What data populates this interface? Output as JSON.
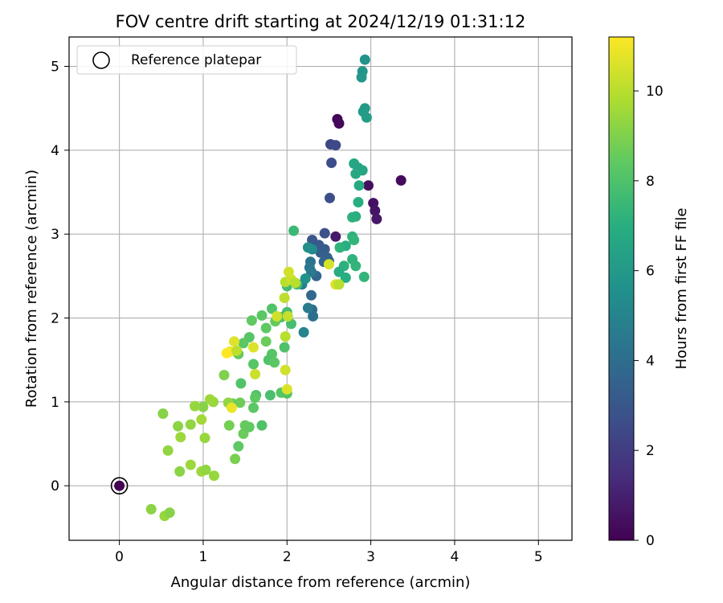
{
  "chart_data": {
    "type": "scatter",
    "title": "FOV centre drift starting at 2024/12/19 01:31:12",
    "xlabel": "Angular distance from reference (arcmin)",
    "ylabel": "Rotation from reference (arcmin)",
    "xlim": [
      -0.6,
      5.4
    ],
    "ylim": [
      -0.65,
      5.35
    ],
    "xticks": [
      0,
      1,
      2,
      3,
      4,
      5
    ],
    "yticks": [
      0,
      1,
      2,
      3,
      4,
      5
    ],
    "grid": true,
    "legend": {
      "placement": "top-left",
      "entries": [
        {
          "label": "Reference platepar",
          "marker": "open-circle"
        }
      ]
    },
    "colorbar": {
      "label": "Hours from first FF file",
      "range": [
        0,
        11.2
      ],
      "ticks": [
        0,
        2,
        4,
        6,
        8,
        10
      ],
      "colormap": "viridis"
    },
    "reference_point": {
      "x": 0,
      "y": 0,
      "c": 0
    },
    "points": [
      {
        "x": 0,
        "y": 0,
        "c": 0
      },
      {
        "x": 2.6,
        "y": 4.37,
        "c": 0.1
      },
      {
        "x": 2.62,
        "y": 4.32,
        "c": 0.2
      },
      {
        "x": 3.36,
        "y": 3.64,
        "c": 0.3
      },
      {
        "x": 2.97,
        "y": 3.58,
        "c": 0.4
      },
      {
        "x": 3.03,
        "y": 3.37,
        "c": 0.5
      },
      {
        "x": 3.05,
        "y": 3.28,
        "c": 0.6
      },
      {
        "x": 3.07,
        "y": 3.18,
        "c": 0.7
      },
      {
        "x": 2.58,
        "y": 2.97,
        "c": 0.8
      },
      {
        "x": 2.52,
        "y": 4.07,
        "c": 2.4
      },
      {
        "x": 2.58,
        "y": 4.06,
        "c": 2.5
      },
      {
        "x": 2.53,
        "y": 3.85,
        "c": 2.6
      },
      {
        "x": 2.51,
        "y": 3.43,
        "c": 2.7
      },
      {
        "x": 2.45,
        "y": 3.01,
        "c": 2.8
      },
      {
        "x": 2.3,
        "y": 2.93,
        "c": 3.0
      },
      {
        "x": 2.38,
        "y": 2.87,
        "c": 3.1
      },
      {
        "x": 2.45,
        "y": 2.82,
        "c": 3.2
      },
      {
        "x": 2.4,
        "y": 2.78,
        "c": 3.3
      },
      {
        "x": 2.48,
        "y": 2.72,
        "c": 3.4
      },
      {
        "x": 2.5,
        "y": 2.68,
        "c": 3.5
      },
      {
        "x": 2.44,
        "y": 2.67,
        "c": 3.6
      },
      {
        "x": 2.35,
        "y": 2.5,
        "c": 3.7
      },
      {
        "x": 2.29,
        "y": 2.27,
        "c": 3.8
      },
      {
        "x": 2.3,
        "y": 2.1,
        "c": 4.0
      },
      {
        "x": 2.31,
        "y": 2.02,
        "c": 4.1
      },
      {
        "x": 2.28,
        "y": 2.67,
        "c": 4.2
      },
      {
        "x": 2.27,
        "y": 2.6,
        "c": 4.4
      },
      {
        "x": 2.29,
        "y": 2.55,
        "c": 4.5
      },
      {
        "x": 2.25,
        "y": 2.12,
        "c": 4.6
      },
      {
        "x": 2.18,
        "y": 2.4,
        "c": 4.8
      },
      {
        "x": 2.2,
        "y": 1.83,
        "c": 5.0
      },
      {
        "x": 2.3,
        "y": 2.82,
        "c": 5.2
      },
      {
        "x": 2.25,
        "y": 2.84,
        "c": 5.5
      },
      {
        "x": 2.22,
        "y": 2.47,
        "c": 5.6
      },
      {
        "x": 2.93,
        "y": 5.08,
        "c": 5.7
      },
      {
        "x": 2.9,
        "y": 4.94,
        "c": 5.8
      },
      {
        "x": 2.89,
        "y": 4.87,
        "c": 5.9
      },
      {
        "x": 2.93,
        "y": 4.5,
        "c": 6.0
      },
      {
        "x": 2.91,
        "y": 4.46,
        "c": 6.1
      },
      {
        "x": 2.95,
        "y": 4.39,
        "c": 6.2
      },
      {
        "x": 2.85,
        "y": 3.79,
        "c": 6.4
      },
      {
        "x": 2.9,
        "y": 3.76,
        "c": 6.5
      },
      {
        "x": 2.8,
        "y": 3.84,
        "c": 6.6
      },
      {
        "x": 2.82,
        "y": 3.72,
        "c": 6.7
      },
      {
        "x": 2.86,
        "y": 3.58,
        "c": 6.8
      },
      {
        "x": 2.85,
        "y": 3.38,
        "c": 6.9
      },
      {
        "x": 2.82,
        "y": 3.21,
        "c": 7.0
      },
      {
        "x": 2.78,
        "y": 3.2,
        "c": 7.1
      },
      {
        "x": 2.78,
        "y": 2.97,
        "c": 7.2
      },
      {
        "x": 2.8,
        "y": 2.93,
        "c": 7.3
      },
      {
        "x": 2.7,
        "y": 2.86,
        "c": 7.0
      },
      {
        "x": 2.63,
        "y": 2.84,
        "c": 7.2
      },
      {
        "x": 2.68,
        "y": 2.62,
        "c": 7.1
      },
      {
        "x": 2.62,
        "y": 2.55,
        "c": 6.9
      },
      {
        "x": 2.7,
        "y": 2.48,
        "c": 7.0
      },
      {
        "x": 2.78,
        "y": 2.7,
        "c": 7.2
      },
      {
        "x": 2.82,
        "y": 2.62,
        "c": 7.3
      },
      {
        "x": 2.92,
        "y": 2.49,
        "c": 7.3
      },
      {
        "x": 2.08,
        "y": 3.04,
        "c": 7.5
      },
      {
        "x": 2.12,
        "y": 2.4,
        "c": 7.6
      },
      {
        "x": 2.0,
        "y": 2.38,
        "c": 7.7
      },
      {
        "x": 2.0,
        "y": 2.07,
        "c": 7.8
      },
      {
        "x": 2.05,
        "y": 1.93,
        "c": 7.8
      },
      {
        "x": 1.93,
        "y": 2.01,
        "c": 8.0
      },
      {
        "x": 1.82,
        "y": 2.11,
        "c": 8.1
      },
      {
        "x": 1.7,
        "y": 2.03,
        "c": 8.3
      },
      {
        "x": 1.75,
        "y": 1.88,
        "c": 8.4
      },
      {
        "x": 1.86,
        "y": 1.96,
        "c": 8.5
      },
      {
        "x": 1.75,
        "y": 1.72,
        "c": 8.6
      },
      {
        "x": 1.82,
        "y": 1.57,
        "c": 8.2
      },
      {
        "x": 1.78,
        "y": 1.5,
        "c": 8.1
      },
      {
        "x": 1.85,
        "y": 1.47,
        "c": 8.3
      },
      {
        "x": 1.97,
        "y": 1.65,
        "c": 8.0
      },
      {
        "x": 1.58,
        "y": 1.97,
        "c": 8.4
      },
      {
        "x": 1.55,
        "y": 1.77,
        "c": 8.2
      },
      {
        "x": 1.48,
        "y": 1.7,
        "c": 8.3
      },
      {
        "x": 1.42,
        "y": 1.57,
        "c": 8.5
      },
      {
        "x": 1.6,
        "y": 1.45,
        "c": 8.2
      },
      {
        "x": 1.45,
        "y": 1.22,
        "c": 8.1
      },
      {
        "x": 1.63,
        "y": 1.08,
        "c": 8.0
      },
      {
        "x": 1.62,
        "y": 1.05,
        "c": 8.4
      },
      {
        "x": 1.6,
        "y": 0.93,
        "c": 8.3
      },
      {
        "x": 1.8,
        "y": 1.08,
        "c": 7.9
      },
      {
        "x": 1.93,
        "y": 1.11,
        "c": 8.2
      },
      {
        "x": 2.0,
        "y": 1.1,
        "c": 8.1
      },
      {
        "x": 1.7,
        "y": 0.72,
        "c": 8.0
      },
      {
        "x": 1.55,
        "y": 0.7,
        "c": 8.4
      },
      {
        "x": 1.48,
        "y": 0.62,
        "c": 8.6
      },
      {
        "x": 1.5,
        "y": 0.72,
        "c": 8.5
      },
      {
        "x": 1.44,
        "y": 0.99,
        "c": 8.7
      },
      {
        "x": 1.35,
        "y": 0.98,
        "c": 8.6
      },
      {
        "x": 1.31,
        "y": 0.72,
        "c": 8.8
      },
      {
        "x": 1.42,
        "y": 0.47,
        "c": 8.4
      },
      {
        "x": 1.38,
        "y": 0.32,
        "c": 8.9
      },
      {
        "x": 1.25,
        "y": 1.32,
        "c": 9.0
      },
      {
        "x": 1.3,
        "y": 0.99,
        "c": 9.3
      },
      {
        "x": 1.12,
        "y": 1.0,
        "c": 9.4
      },
      {
        "x": 1.08,
        "y": 1.03,
        "c": 9.5
      },
      {
        "x": 1.0,
        "y": 0.94,
        "c": 9.1
      },
      {
        "x": 0.9,
        "y": 0.95,
        "c": 9.4
      },
      {
        "x": 0.98,
        "y": 0.79,
        "c": 9.6
      },
      {
        "x": 0.85,
        "y": 0.73,
        "c": 9.3
      },
      {
        "x": 0.7,
        "y": 0.71,
        "c": 9.2
      },
      {
        "x": 0.73,
        "y": 0.58,
        "c": 9.5
      },
      {
        "x": 1.02,
        "y": 0.57,
        "c": 9.4
      },
      {
        "x": 0.52,
        "y": 0.86,
        "c": 9.1
      },
      {
        "x": 0.58,
        "y": 0.42,
        "c": 9.3
      },
      {
        "x": 0.85,
        "y": 0.25,
        "c": 9.5
      },
      {
        "x": 0.72,
        "y": 0.17,
        "c": 9.2
      },
      {
        "x": 0.98,
        "y": 0.17,
        "c": 9.5
      },
      {
        "x": 1.03,
        "y": 0.19,
        "c": 9.3
      },
      {
        "x": 1.13,
        "y": 0.12,
        "c": 9.4
      },
      {
        "x": 0.38,
        "y": -0.28,
        "c": 9.2
      },
      {
        "x": 0.54,
        "y": -0.36,
        "c": 9.4
      },
      {
        "x": 0.6,
        "y": -0.32,
        "c": 9.1
      },
      {
        "x": 1.6,
        "y": 1.65,
        "c": 10.6
      },
      {
        "x": 1.32,
        "y": 1.6,
        "c": 10.9
      },
      {
        "x": 1.28,
        "y": 1.58,
        "c": 11.2
      },
      {
        "x": 1.37,
        "y": 1.72,
        "c": 10.7
      },
      {
        "x": 1.62,
        "y": 1.33,
        "c": 10.3
      },
      {
        "x": 1.98,
        "y": 1.38,
        "c": 10.4
      },
      {
        "x": 2.0,
        "y": 1.15,
        "c": 10.6
      },
      {
        "x": 1.34,
        "y": 0.93,
        "c": 10.9
      },
      {
        "x": 1.4,
        "y": 1.61,
        "c": 10.1
      },
      {
        "x": 1.98,
        "y": 1.78,
        "c": 10.0
      },
      {
        "x": 1.88,
        "y": 2.02,
        "c": 10.4
      },
      {
        "x": 2.01,
        "y": 2.02,
        "c": 10.2
      },
      {
        "x": 1.97,
        "y": 2.24,
        "c": 10.1
      },
      {
        "x": 1.98,
        "y": 2.43,
        "c": 10.0
      },
      {
        "x": 2.05,
        "y": 2.46,
        "c": 10.3
      },
      {
        "x": 2.02,
        "y": 2.55,
        "c": 10.4
      },
      {
        "x": 2.1,
        "y": 2.42,
        "c": 10.0
      },
      {
        "x": 2.5,
        "y": 2.64,
        "c": 10.5
      },
      {
        "x": 2.58,
        "y": 2.4,
        "c": 10.6
      },
      {
        "x": 2.62,
        "y": 2.4,
        "c": 10.0
      }
    ]
  }
}
